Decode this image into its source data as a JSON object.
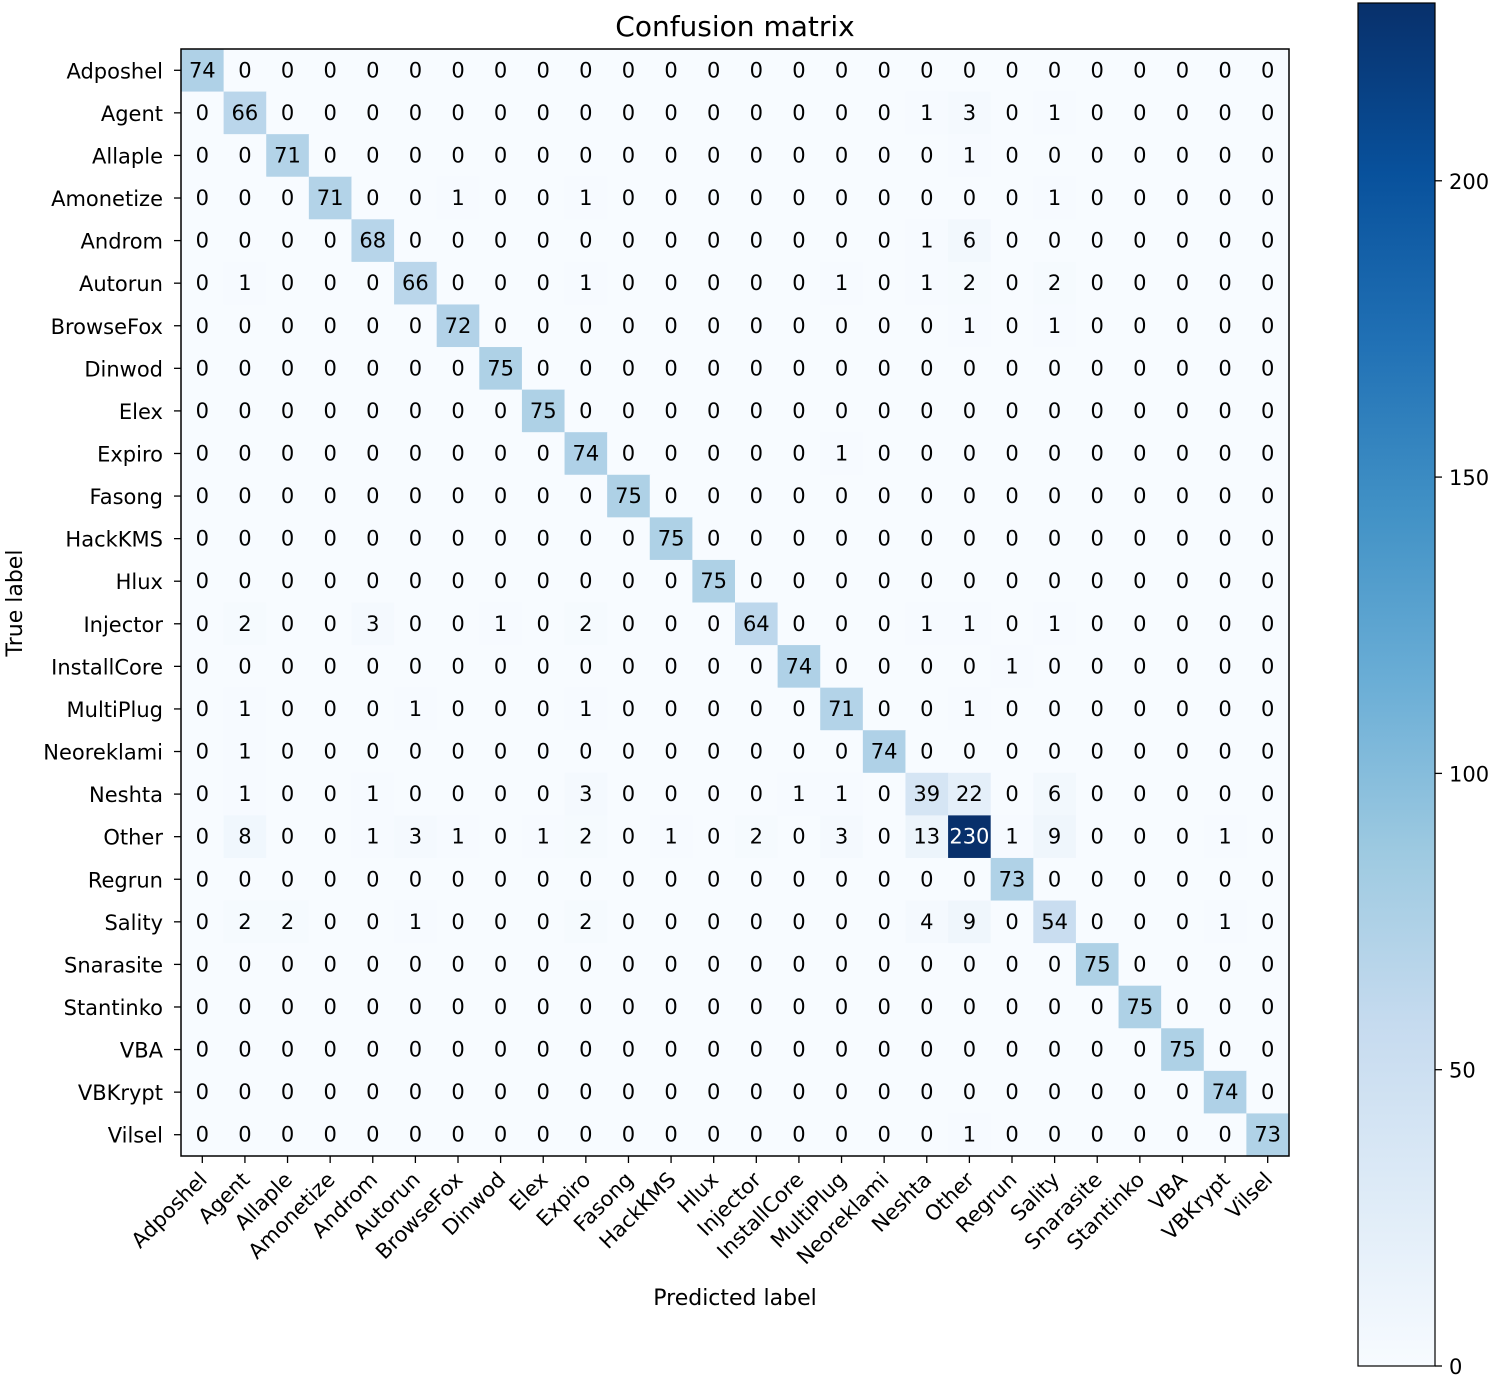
{
  "chart_data": {
    "type": "heatmap",
    "title": "Confusion matrix",
    "xlabel": "Predicted label",
    "ylabel": "True label",
    "labels": [
      "Adposhel",
      "Agent",
      "Allaple",
      "Amonetize",
      "Androm",
      "Autorun",
      "BrowseFox",
      "Dinwod",
      "Elex",
      "Expiro",
      "Fasong",
      "HackKMS",
      "Hlux",
      "Injector",
      "InstallCore",
      "MultiPlug",
      "Neoreklami",
      "Neshta",
      "Other",
      "Regrun",
      "Sality",
      "Snarasite",
      "Stantinko",
      "VBA",
      "VBKrypt",
      "Vilsel"
    ],
    "matrix": [
      [
        74,
        0,
        0,
        0,
        0,
        0,
        0,
        0,
        0,
        0,
        0,
        0,
        0,
        0,
        0,
        0,
        0,
        0,
        0,
        0,
        0,
        0,
        0,
        0,
        0,
        0
      ],
      [
        0,
        66,
        0,
        0,
        0,
        0,
        0,
        0,
        0,
        0,
        0,
        0,
        0,
        0,
        0,
        0,
        0,
        1,
        3,
        0,
        1,
        0,
        0,
        0,
        0,
        0
      ],
      [
        0,
        0,
        71,
        0,
        0,
        0,
        0,
        0,
        0,
        0,
        0,
        0,
        0,
        0,
        0,
        0,
        0,
        0,
        1,
        0,
        0,
        0,
        0,
        0,
        0,
        0
      ],
      [
        0,
        0,
        0,
        71,
        0,
        0,
        1,
        0,
        0,
        1,
        0,
        0,
        0,
        0,
        0,
        0,
        0,
        0,
        0,
        0,
        1,
        0,
        0,
        0,
        0,
        0
      ],
      [
        0,
        0,
        0,
        0,
        68,
        0,
        0,
        0,
        0,
        0,
        0,
        0,
        0,
        0,
        0,
        0,
        0,
        1,
        6,
        0,
        0,
        0,
        0,
        0,
        0,
        0
      ],
      [
        0,
        1,
        0,
        0,
        0,
        66,
        0,
        0,
        0,
        1,
        0,
        0,
        0,
        0,
        0,
        1,
        0,
        1,
        2,
        0,
        2,
        0,
        0,
        0,
        0,
        0
      ],
      [
        0,
        0,
        0,
        0,
        0,
        0,
        72,
        0,
        0,
        0,
        0,
        0,
        0,
        0,
        0,
        0,
        0,
        0,
        1,
        0,
        1,
        0,
        0,
        0,
        0,
        0
      ],
      [
        0,
        0,
        0,
        0,
        0,
        0,
        0,
        75,
        0,
        0,
        0,
        0,
        0,
        0,
        0,
        0,
        0,
        0,
        0,
        0,
        0,
        0,
        0,
        0,
        0,
        0
      ],
      [
        0,
        0,
        0,
        0,
        0,
        0,
        0,
        0,
        75,
        0,
        0,
        0,
        0,
        0,
        0,
        0,
        0,
        0,
        0,
        0,
        0,
        0,
        0,
        0,
        0,
        0
      ],
      [
        0,
        0,
        0,
        0,
        0,
        0,
        0,
        0,
        0,
        74,
        0,
        0,
        0,
        0,
        0,
        1,
        0,
        0,
        0,
        0,
        0,
        0,
        0,
        0,
        0,
        0
      ],
      [
        0,
        0,
        0,
        0,
        0,
        0,
        0,
        0,
        0,
        0,
        75,
        0,
        0,
        0,
        0,
        0,
        0,
        0,
        0,
        0,
        0,
        0,
        0,
        0,
        0,
        0
      ],
      [
        0,
        0,
        0,
        0,
        0,
        0,
        0,
        0,
        0,
        0,
        0,
        75,
        0,
        0,
        0,
        0,
        0,
        0,
        0,
        0,
        0,
        0,
        0,
        0,
        0,
        0
      ],
      [
        0,
        0,
        0,
        0,
        0,
        0,
        0,
        0,
        0,
        0,
        0,
        0,
        75,
        0,
        0,
        0,
        0,
        0,
        0,
        0,
        0,
        0,
        0,
        0,
        0,
        0
      ],
      [
        0,
        2,
        0,
        0,
        3,
        0,
        0,
        1,
        0,
        2,
        0,
        0,
        0,
        64,
        0,
        0,
        0,
        1,
        1,
        0,
        1,
        0,
        0,
        0,
        0,
        0
      ],
      [
        0,
        0,
        0,
        0,
        0,
        0,
        0,
        0,
        0,
        0,
        0,
        0,
        0,
        0,
        74,
        0,
        0,
        0,
        0,
        1,
        0,
        0,
        0,
        0,
        0,
        0
      ],
      [
        0,
        1,
        0,
        0,
        0,
        1,
        0,
        0,
        0,
        1,
        0,
        0,
        0,
        0,
        0,
        71,
        0,
        0,
        1,
        0,
        0,
        0,
        0,
        0,
        0,
        0
      ],
      [
        0,
        1,
        0,
        0,
        0,
        0,
        0,
        0,
        0,
        0,
        0,
        0,
        0,
        0,
        0,
        0,
        74,
        0,
        0,
        0,
        0,
        0,
        0,
        0,
        0,
        0
      ],
      [
        0,
        1,
        0,
        0,
        1,
        0,
        0,
        0,
        0,
        3,
        0,
        0,
        0,
        0,
        1,
        1,
        0,
        39,
        22,
        0,
        6,
        0,
        0,
        0,
        0,
        0
      ],
      [
        0,
        8,
        0,
        0,
        1,
        3,
        1,
        0,
        1,
        2,
        0,
        1,
        0,
        2,
        0,
        3,
        0,
        13,
        230,
        1,
        9,
        0,
        0,
        0,
        1,
        0
      ],
      [
        0,
        0,
        0,
        0,
        0,
        0,
        0,
        0,
        0,
        0,
        0,
        0,
        0,
        0,
        0,
        0,
        0,
        0,
        0,
        73,
        0,
        0,
        0,
        0,
        0,
        0
      ],
      [
        0,
        2,
        2,
        0,
        0,
        1,
        0,
        0,
        0,
        2,
        0,
        0,
        0,
        0,
        0,
        0,
        0,
        4,
        9,
        0,
        54,
        0,
        0,
        0,
        1,
        0
      ],
      [
        0,
        0,
        0,
        0,
        0,
        0,
        0,
        0,
        0,
        0,
        0,
        0,
        0,
        0,
        0,
        0,
        0,
        0,
        0,
        0,
        0,
        75,
        0,
        0,
        0,
        0
      ],
      [
        0,
        0,
        0,
        0,
        0,
        0,
        0,
        0,
        0,
        0,
        0,
        0,
        0,
        0,
        0,
        0,
        0,
        0,
        0,
        0,
        0,
        0,
        75,
        0,
        0,
        0
      ],
      [
        0,
        0,
        0,
        0,
        0,
        0,
        0,
        0,
        0,
        0,
        0,
        0,
        0,
        0,
        0,
        0,
        0,
        0,
        0,
        0,
        0,
        0,
        0,
        75,
        0,
        0
      ],
      [
        0,
        0,
        0,
        0,
        0,
        0,
        0,
        0,
        0,
        0,
        0,
        0,
        0,
        0,
        0,
        0,
        0,
        0,
        0,
        0,
        0,
        0,
        0,
        0,
        74,
        0
      ],
      [
        0,
        0,
        0,
        0,
        0,
        0,
        0,
        0,
        0,
        0,
        0,
        0,
        0,
        0,
        0,
        0,
        0,
        0,
        1,
        0,
        0,
        0,
        0,
        0,
        0,
        73
      ]
    ],
    "colorbar": {
      "colormap": "Blues",
      "vmin": 0,
      "vmax": 230,
      "ticks": [
        0,
        50,
        100,
        150,
        200
      ]
    },
    "grid": false
  }
}
